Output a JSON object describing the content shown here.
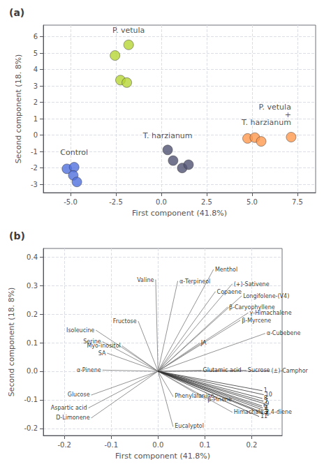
{
  "chart_data": [
    {
      "type": "scatter",
      "title": "(a)",
      "xlabel": "First component (41.8%)",
      "ylabel": "Second component (18. 8%)",
      "xlim": [
        -6.5,
        8.5
      ],
      "ylim": [
        -3.5,
        6.7
      ],
      "xticks": [
        {
          "value": -5.0,
          "label": "-5.0"
        },
        -2.5,
        {
          "value": 0.0,
          "label": "0.0"
        },
        2.5,
        {
          "value": 5.0,
          "label": "5.0"
        },
        7.5
      ],
      "yticks": [
        -3,
        -2,
        -1,
        0,
        1,
        2,
        3,
        4,
        5,
        6
      ],
      "grid": true,
      "series": [
        {
          "name": "Control",
          "x": [
            -5.2,
            -4.8,
            -4.85,
            -4.65
          ],
          "values": [
            -2.05,
            -1.95,
            -2.45,
            -2.85
          ]
        },
        {
          "name": "P. vetula",
          "x": [
            -2.55,
            -1.8,
            -2.25,
            -1.9
          ],
          "values": [
            4.85,
            5.5,
            3.35,
            3.2
          ]
        },
        {
          "name": "T. harzianum",
          "x": [
            0.35,
            0.65,
            1.15,
            1.5
          ],
          "values": [
            -0.9,
            -1.55,
            -2.0,
            -1.8
          ]
        },
        {
          "name": "P. vetula\n+\nT. harzianum",
          "x": [
            4.75,
            5.15,
            5.5,
            7.15
          ],
          "values": [
            -0.2,
            -0.15,
            -0.38,
            -0.12
          ]
        }
      ]
    },
    {
      "type": "biplot",
      "title": "(b)",
      "xlabel": "First component (41.8%)",
      "ylabel": "Second component (18. 8%)",
      "xlim": [
        -0.245,
        0.265
      ],
      "ylim": [
        -0.225,
        0.43
      ],
      "xticks": [
        -0.2,
        -0.1,
        {
          "value": 0.0,
          "label": "0.0"
        },
        0.1,
        0.2
      ],
      "yticks": [
        -0.2,
        -0.1,
        {
          "value": 0.0,
          "label": "0.0"
        },
        0.1,
        0.2,
        0.3,
        0.4
      ],
      "grid": true,
      "loadings": [
        {
          "x": -0.005,
          "y": 0.32,
          "label": "Valine"
        },
        {
          "x": 0.042,
          "y": 0.315,
          "label": "α-Terpineol"
        },
        {
          "x": 0.118,
          "y": 0.355,
          "label": "Menthol"
        },
        {
          "x": 0.158,
          "y": 0.305,
          "label": "(+)-Sativene"
        },
        {
          "x": 0.122,
          "y": 0.278,
          "label": "Copaene"
        },
        {
          "x": 0.178,
          "y": 0.263,
          "label": "Longifolene-(V4)"
        },
        {
          "x": 0.148,
          "y": 0.224,
          "label": "β-Caryophyllene"
        },
        {
          "x": 0.192,
          "y": 0.204,
          "label": "γ-Himachalene"
        },
        {
          "x": 0.175,
          "y": 0.178,
          "label": "β-Myrcene"
        },
        {
          "x": 0.228,
          "y": 0.132,
          "label": "α-Cubebene"
        },
        {
          "x": -0.042,
          "y": 0.174,
          "label": "Fructose"
        },
        {
          "x": -0.132,
          "y": 0.143,
          "label": "Isoleucine"
        },
        {
          "x": -0.118,
          "y": 0.103,
          "label": "Serine"
        },
        {
          "x": -0.076,
          "y": 0.088,
          "label": "Myo-inositol"
        },
        {
          "x": -0.108,
          "y": 0.063,
          "label": "SA"
        },
        {
          "x": 0.088,
          "y": 0.098,
          "label": "JA"
        },
        {
          "x": -0.118,
          "y": 0.004,
          "label": "α-Pinene"
        },
        {
          "x": 0.092,
          "y": 0.003,
          "label": "Glutamic acid"
        },
        {
          "x": 0.188,
          "y": 0.003,
          "label": "Sucrose"
        },
        {
          "x": 0.238,
          "y": 0.001,
          "label": "(±)-Camphor"
        },
        {
          "x": -0.142,
          "y": -0.083,
          "label": "Glucose"
        },
        {
          "x": 0.032,
          "y": -0.088,
          "label": "Phenylalanine"
        },
        {
          "x": 0.102,
          "y": -0.098,
          "label": "β-Pinene"
        },
        {
          "x": -0.148,
          "y": -0.128,
          "label": "Aspartic acid"
        },
        {
          "x": 0.158,
          "y": -0.143,
          "label": "Himachala-2,4-diene"
        },
        {
          "x": -0.142,
          "y": -0.163,
          "label": "D-Limonene"
        },
        {
          "x": 0.032,
          "y": -0.193,
          "label": "Eucalyptol"
        }
      ],
      "samples": [
        {
          "x": 0.222,
          "y": -0.068,
          "label": "1"
        },
        {
          "x": 0.225,
          "y": -0.082,
          "label": "10"
        },
        {
          "x": 0.222,
          "y": -0.095,
          "label": "8"
        },
        {
          "x": 0.224,
          "y": -0.105,
          "label": "7"
        },
        {
          "x": 0.226,
          "y": -0.113,
          "label": "9"
        },
        {
          "x": 0.221,
          "y": -0.121,
          "label": "6"
        },
        {
          "x": 0.223,
          "y": -0.128,
          "label": "2"
        },
        {
          "x": 0.225,
          "y": -0.136,
          "label": "5"
        },
        {
          "x": 0.222,
          "y": -0.143,
          "label": "3"
        },
        {
          "x": 0.215,
          "y": -0.158,
          "label": "11"
        },
        {
          "x": 0.226,
          "y": -0.15,
          "label": "4"
        }
      ]
    }
  ]
}
